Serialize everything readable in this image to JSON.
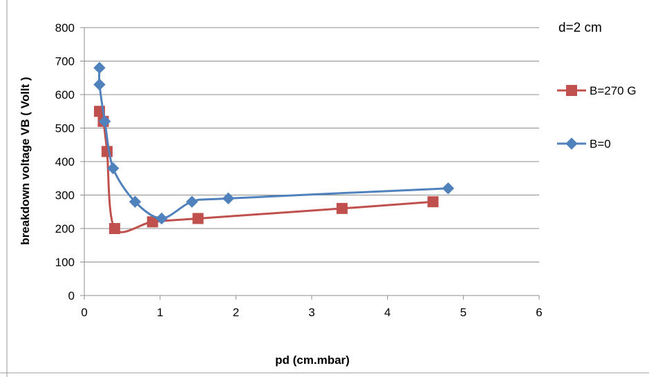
{
  "chart_data": {
    "type": "line",
    "annotation": "d=2 cm",
    "xlabel": "pd (cm.mbar)",
    "ylabel": "breakdown voltage VB ( Vollt )",
    "xlim": [
      0,
      6
    ],
    "ylim": [
      0,
      800
    ],
    "xticks": [
      0,
      1,
      2,
      3,
      4,
      5,
      6
    ],
    "yticks": [
      0,
      100,
      200,
      300,
      400,
      500,
      600,
      700,
      800
    ],
    "grid": "horizontal",
    "legend_position": "right",
    "series": [
      {
        "name": "B=270 G",
        "color": "#c0504d",
        "marker": "square",
        "x": [
          0.2,
          0.25,
          0.3,
          0.4,
          0.9,
          1.5,
          3.4,
          4.6
        ],
        "y": [
          550,
          520,
          430,
          200,
          220,
          230,
          260,
          280
        ]
      },
      {
        "name": "B=0",
        "color": "#4f81bd",
        "marker": "diamond",
        "x": [
          0.2,
          0.2,
          0.27,
          0.38,
          0.67,
          1.02,
          1.42,
          1.9,
          4.8
        ],
        "y": [
          680,
          630,
          520,
          380,
          280,
          230,
          280,
          290,
          320
        ]
      }
    ]
  }
}
